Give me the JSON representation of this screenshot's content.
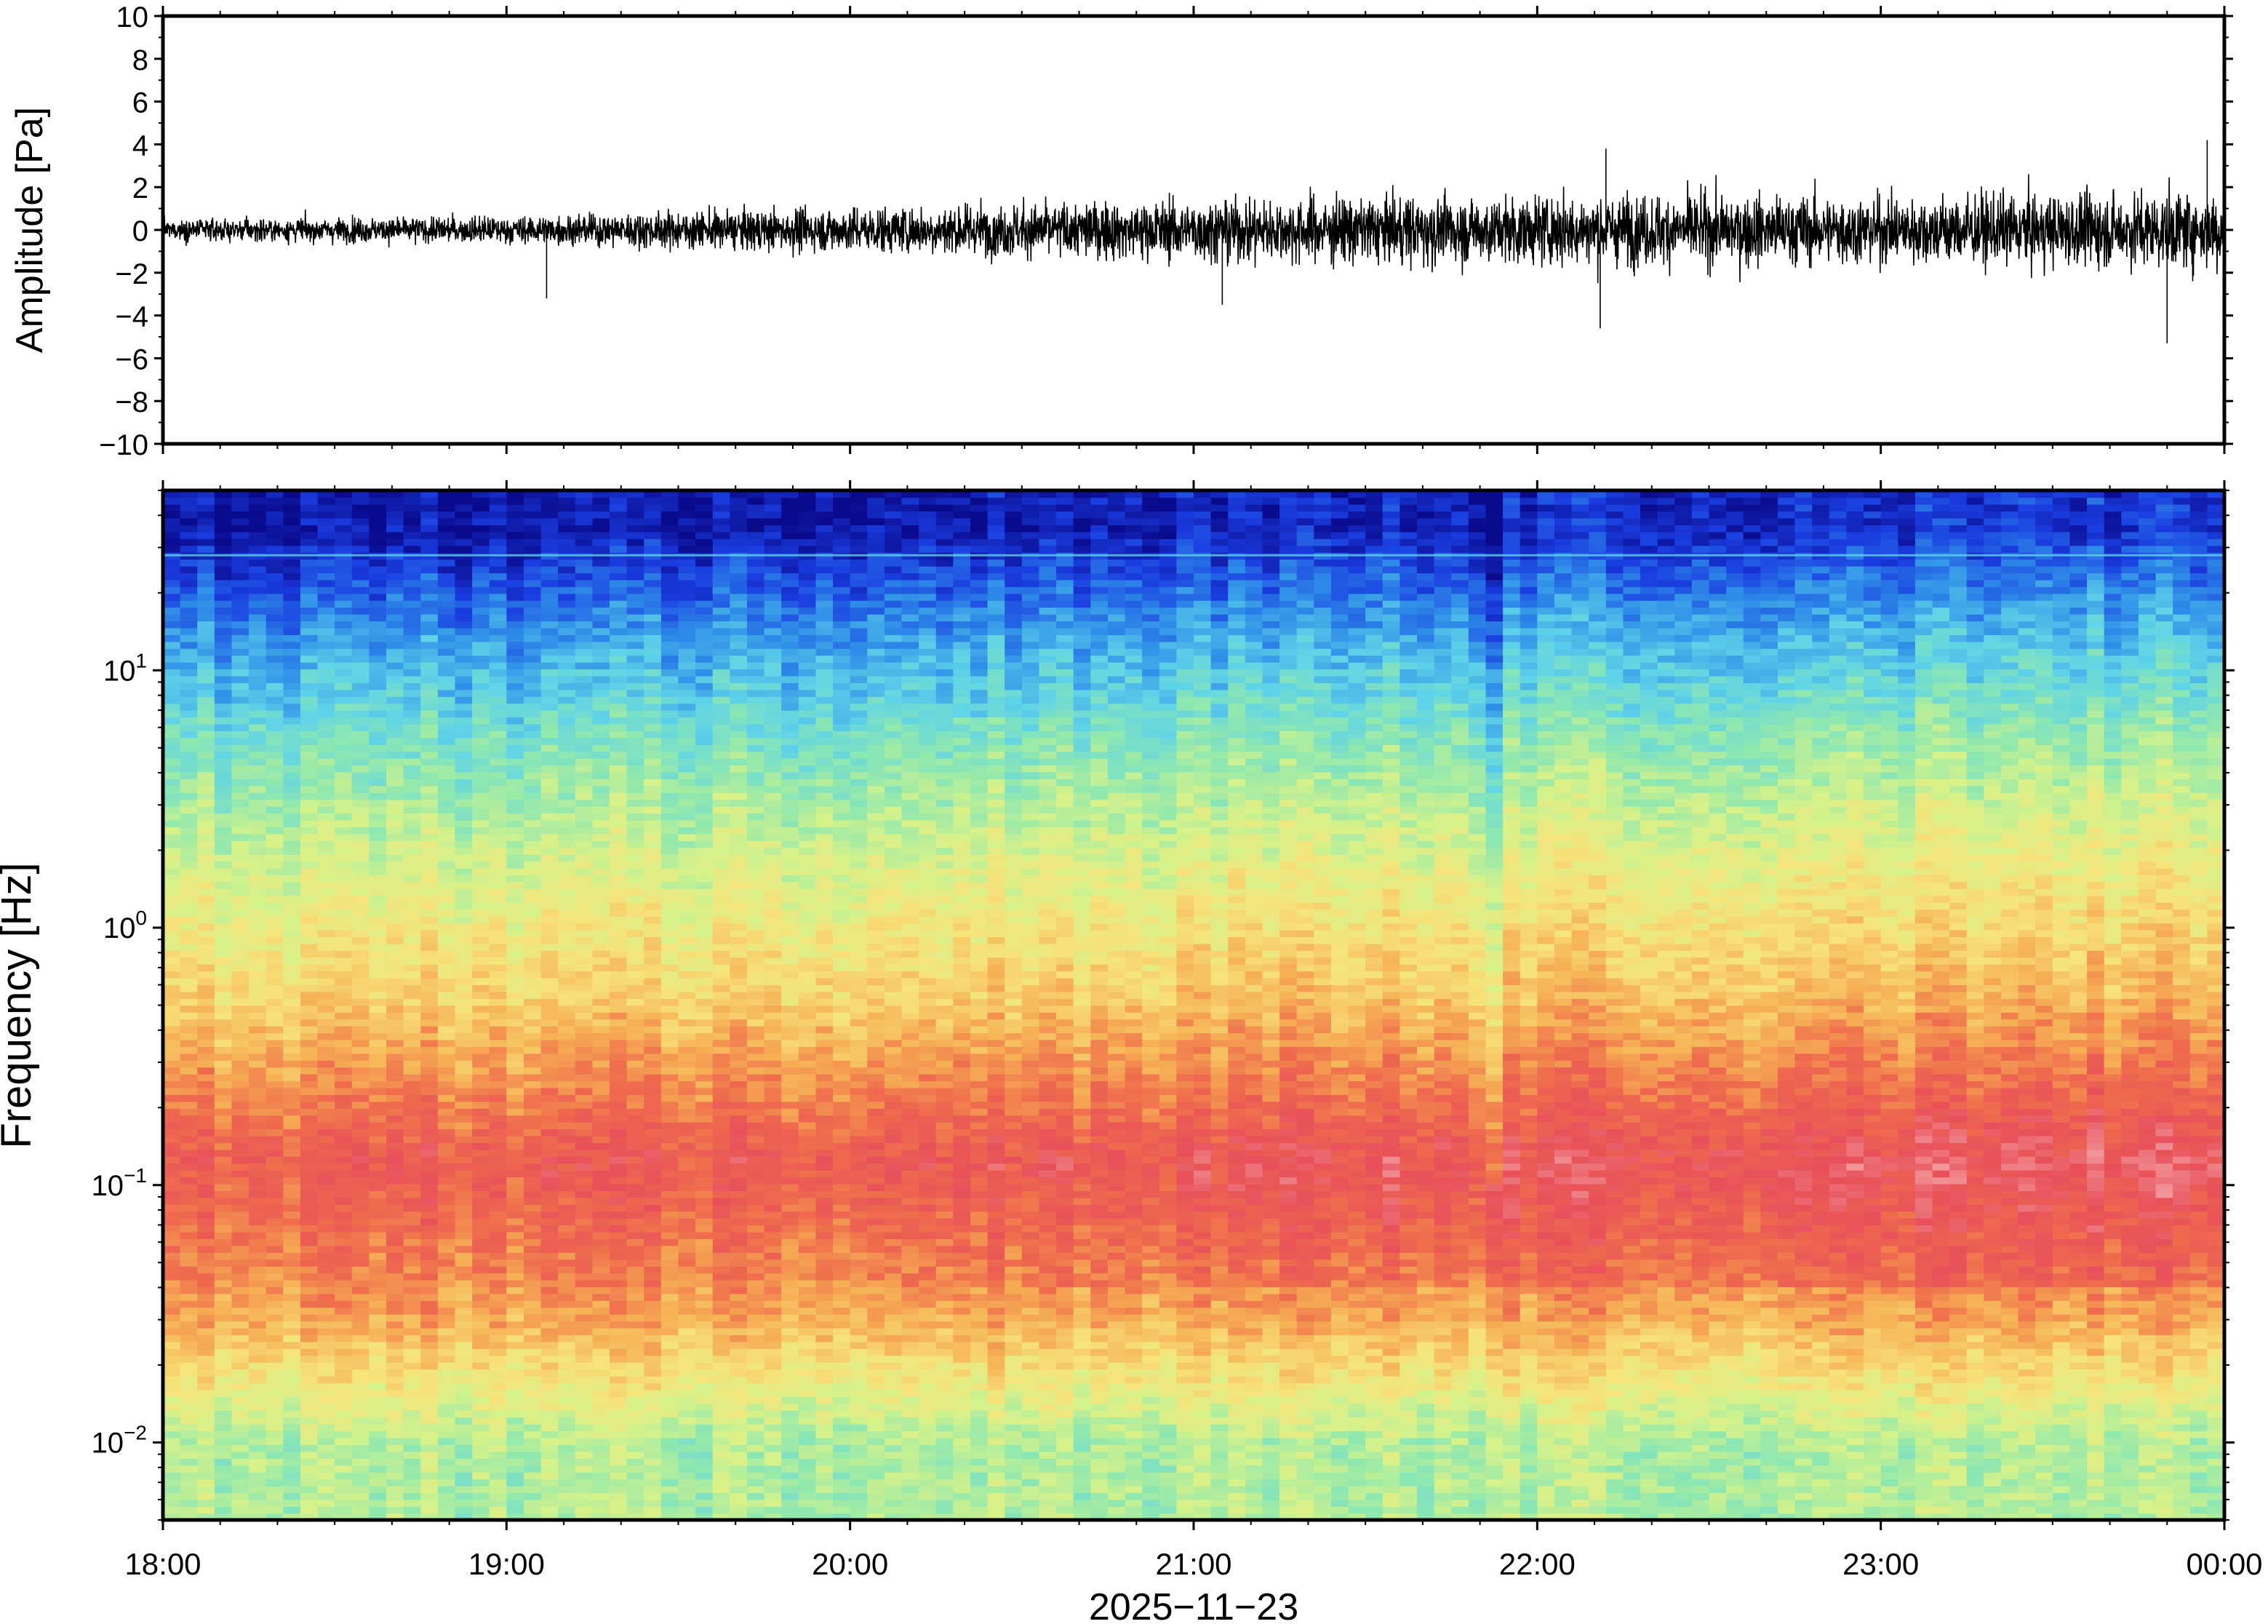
{
  "chart_data": [
    {
      "type": "line",
      "panel": "waveform",
      "title": "",
      "xlabel": "",
      "ylabel": "Amplitude [Pa]",
      "ylim": [
        -10,
        10
      ],
      "yticks": [
        {
          "value": 10,
          "label": "10"
        },
        {
          "value": 8,
          "label": "8"
        },
        {
          "value": 6,
          "label": "6"
        },
        {
          "value": 4,
          "label": "4"
        },
        {
          "value": 2,
          "label": "2"
        },
        {
          "value": 0,
          "label": "0"
        },
        {
          "value": -2,
          "label": "−2"
        },
        {
          "value": -4,
          "label": "−4"
        },
        {
          "value": -6,
          "label": "−6"
        },
        {
          "value": -8,
          "label": "−8"
        },
        {
          "value": -10,
          "label": "−10"
        }
      ],
      "x_range_hours": [
        18,
        24
      ],
      "line_color": "#000000",
      "envelope": [
        {
          "time": "18:00",
          "peak": 1.0
        },
        {
          "time": "18:30",
          "peak": 1.2
        },
        {
          "time": "19:00",
          "peak": 1.3
        },
        {
          "time": "19:30",
          "peak": 1.8
        },
        {
          "time": "20:00",
          "peak": 2.2
        },
        {
          "time": "20:30",
          "peak": 2.6
        },
        {
          "time": "21:00",
          "peak": 3.0
        },
        {
          "time": "21:30",
          "peak": 3.3
        },
        {
          "time": "22:00",
          "peak": 3.3
        },
        {
          "time": "22:30",
          "peak": 3.5
        },
        {
          "time": "23:00",
          "peak": 3.3
        },
        {
          "time": "23:30",
          "peak": 3.5
        },
        {
          "time": "00:00",
          "peak": 3.8
        }
      ],
      "spikes": [
        {
          "time": "19:07",
          "value": -3.2
        },
        {
          "time": "21:05",
          "value": -3.5
        },
        {
          "time": "22:11",
          "value": -4.6
        },
        {
          "time": "22:12",
          "value": 3.8
        },
        {
          "time": "23:50",
          "value": -5.3
        },
        {
          "time": "23:57",
          "value": 4.2
        }
      ]
    },
    {
      "type": "heatmap",
      "panel": "spectrogram",
      "title": "",
      "xlabel": "2025−11−23",
      "ylabel": "Frequency [Hz]",
      "y_scale": "log",
      "ylim_hz": [
        0.005,
        50
      ],
      "yticks": [
        {
          "value": 10,
          "base": "10",
          "exp": "1"
        },
        {
          "value": 1,
          "base": "10",
          "exp": "0"
        },
        {
          "value": 0.1,
          "base": "10",
          "exp": "−1"
        },
        {
          "value": 0.01,
          "base": "10",
          "exp": "−2"
        }
      ],
      "x_categories": [
        "18:00",
        "19:00",
        "20:00",
        "21:00",
        "22:00",
        "23:00",
        "00:00"
      ],
      "colormap": [
        "#0a0a8c",
        "#1a3de0",
        "#2f8ee8",
        "#5fd3e8",
        "#8ee8b0",
        "#d6f28a",
        "#f7e27a",
        "#f6b055",
        "#ef6c4d",
        "#e8505a",
        "#f4a6a8"
      ],
      "description_bands": [
        {
          "freq_hz": [
            25,
            50
          ],
          "level": 0.02
        },
        {
          "freq_hz": [
            10,
            25
          ],
          "level": 0.18
        },
        {
          "freq_hz": [
            3,
            10
          ],
          "level": 0.35
        },
        {
          "freq_hz": [
            1,
            3
          ],
          "level": 0.5
        },
        {
          "freq_hz": [
            0.3,
            1
          ],
          "level": 0.62
        },
        {
          "freq_hz": [
            0.05,
            0.3
          ],
          "level": 0.85
        },
        {
          "freq_hz": [
            0.02,
            0.05
          ],
          "level": 0.72
        },
        {
          "freq_hz": [
            0.005,
            0.02
          ],
          "level": 0.45
        }
      ],
      "features": [
        {
          "type": "horizontal-line",
          "freq_hz": 28,
          "color": "#5fd3e8"
        },
        {
          "type": "vertical-dip",
          "time": "21:52",
          "note": ""
        }
      ]
    }
  ]
}
